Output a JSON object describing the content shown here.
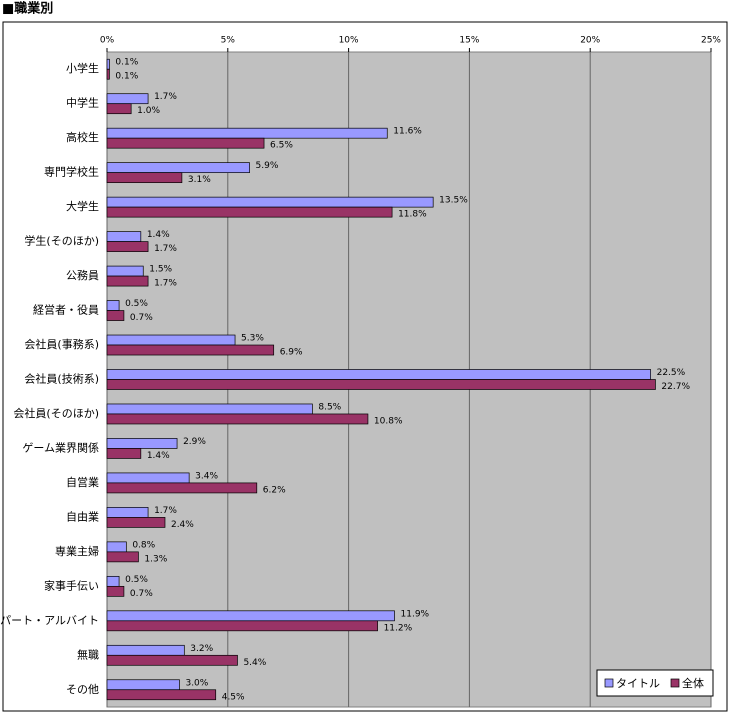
{
  "chart_data": {
    "type": "hbar",
    "title": "■職業別",
    "categories": [
      "小学生",
      "中学生",
      "高校生",
      "専門学校生",
      "大学生",
      "学生(そのほか)",
      "公務員",
      "経営者・役員",
      "会社員(事務系)",
      "会社員(技術系)",
      "会社員(そのほか)",
      "ゲーム業界関係",
      "自営業",
      "自由業",
      "専業主婦",
      "家事手伝い",
      "パート・アルバイト",
      "無職",
      "その他"
    ],
    "series": [
      {
        "name": "タイトル",
        "color": "#9999ff",
        "values": [
          0.1,
          1.7,
          11.6,
          5.9,
          13.5,
          1.4,
          1.5,
          0.5,
          5.3,
          22.5,
          8.5,
          2.9,
          3.4,
          1.7,
          0.8,
          0.5,
          11.9,
          3.2,
          3.0
        ],
        "value_labels": [
          "0.1%",
          "1.7%",
          "11.6%",
          "5.9%",
          "13.5%",
          "1.4%",
          "1.5%",
          "0.5%",
          "5.3%",
          "22.5%",
          "8.5%",
          "2.9%",
          "3.4%",
          "1.7%",
          "0.8%",
          "0.5%",
          "11.9%",
          "3.2%",
          "3.0%"
        ]
      },
      {
        "name": "全体",
        "color": "#993366",
        "values": [
          0.1,
          1.0,
          6.5,
          3.1,
          11.8,
          1.7,
          1.7,
          0.7,
          6.9,
          22.7,
          10.8,
          1.4,
          6.2,
          2.4,
          1.3,
          0.7,
          11.2,
          5.4,
          4.5
        ],
        "value_labels": [
          "0.1%",
          "1.0%",
          "6.5%",
          "3.1%",
          "11.8%",
          "1.7%",
          "1.7%",
          "0.7%",
          "6.9%",
          "22.7%",
          "10.8%",
          "1.4%",
          "6.2%",
          "2.4%",
          "1.3%",
          "0.7%",
          "11.2%",
          "5.4%",
          "4.5%"
        ]
      }
    ],
    "xlim": [
      0,
      25
    ],
    "xticks": [
      {
        "value": 0,
        "label": "0%"
      },
      {
        "value": 5,
        "label": "5%"
      },
      {
        "value": 10,
        "label": "10%"
      },
      {
        "value": 15,
        "label": "15%"
      },
      {
        "value": 20,
        "label": "20%"
      },
      {
        "value": 25,
        "label": "25%"
      }
    ],
    "grid": true,
    "legend": "lower right"
  }
}
